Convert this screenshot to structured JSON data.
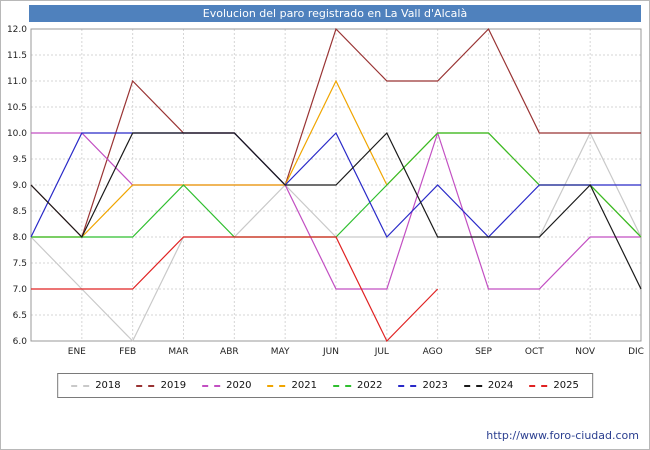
{
  "title": "Evolucion del paro registrado en La Vall d'Alcalà",
  "footer": {
    "url": "http://www.foro-ciudad.com"
  },
  "colors": {
    "title_bar": "#4f81bd",
    "title_text": "#ffffff",
    "grid": "#d6d6d6",
    "frame": "#999999",
    "axis_text": "#222222",
    "footer_link": "#2b3f90"
  },
  "chart_data": {
    "type": "line",
    "title": "Evolucion del paro registrado en La Vall d'Alcalà",
    "x_labels": [
      "ENE",
      "FEB",
      "MAR",
      "ABR",
      "MAY",
      "JUN",
      "JUL",
      "AGO",
      "SEP",
      "OCT",
      "NOV",
      "DIC"
    ],
    "points_note": "13 points per series: value at left plot edge, then one per month ENE..DIC",
    "ylim": [
      6.0,
      12.0
    ],
    "ytick_step": 0.5,
    "grid": true,
    "legend_position": "bottom",
    "series": [
      {
        "name": "2018",
        "color": "#c9c9c9",
        "values": [
          8,
          7,
          6,
          8,
          8,
          9,
          8,
          8,
          8,
          8,
          8,
          10,
          8
        ]
      },
      {
        "name": "2019",
        "color": "#993333",
        "values": [
          9,
          8,
          11,
          10,
          10,
          9,
          12,
          11,
          11,
          12,
          10,
          10,
          10
        ]
      },
      {
        "name": "2020",
        "color": "#c24fc2",
        "values": [
          10,
          10,
          9,
          9,
          9,
          9,
          7,
          7,
          10,
          7,
          7,
          8,
          8
        ]
      },
      {
        "name": "2021",
        "color": "#f0a500",
        "values": [
          8,
          8,
          9,
          9,
          9,
          9,
          11,
          9,
          10,
          10,
          9,
          9,
          8
        ]
      },
      {
        "name": "2022",
        "color": "#2fbf2f",
        "values": [
          8,
          8,
          8,
          9,
          8,
          8,
          8,
          9,
          10,
          10,
          9,
          9,
          8
        ]
      },
      {
        "name": "2023",
        "color": "#2929c8",
        "values": [
          8,
          10,
          10,
          10,
          10,
          9,
          10,
          8,
          9,
          8,
          9,
          9,
          9
        ]
      },
      {
        "name": "2024",
        "color": "#1a1a1a",
        "values": [
          9,
          8,
          10,
          10,
          10,
          9,
          9,
          10,
          8,
          8,
          8,
          9,
          7
        ]
      },
      {
        "name": "2025",
        "color": "#e02222",
        "values": [
          7,
          7,
          7,
          8,
          8,
          8,
          8,
          6,
          7,
          null,
          null,
          null,
          null
        ]
      }
    ]
  }
}
